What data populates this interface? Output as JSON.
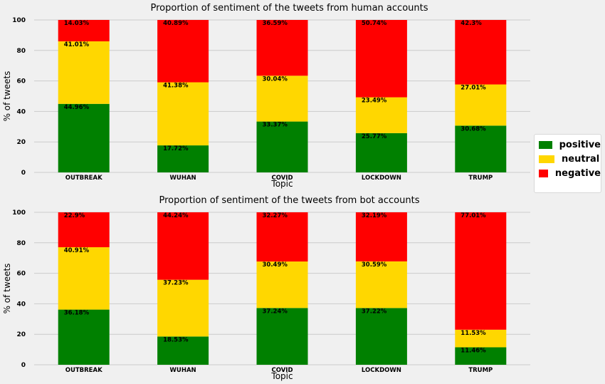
{
  "legend": {
    "entries": [
      {
        "label": "positive",
        "color": "#008000"
      },
      {
        "label": "neutral",
        "color": "#ffd700"
      },
      {
        "label": "negative",
        "color": "#ff0000"
      }
    ]
  },
  "chart_data": [
    {
      "type": "bar",
      "stacked": true,
      "title": "Proportion of sentiment of the tweets from human accounts",
      "xlabel": "Topic",
      "ylabel": "% of tweets",
      "ylim": [
        0,
        100
      ],
      "yticks": [
        "0",
        "20",
        "40",
        "60",
        "80",
        "100"
      ],
      "grid": true,
      "legend_position": "top-right, outside plot",
      "categories": [
        "OUTBREAK",
        "WUHAN",
        "COVID",
        "LOCKDOWN",
        "TRUMP"
      ],
      "series": [
        {
          "name": "positive",
          "color": "#008000",
          "values": [
            44.96,
            17.72,
            33.37,
            25.77,
            30.68
          ],
          "labels": [
            "44.96%",
            "17.72%",
            "33.37%",
            "25.77%",
            "30.68%"
          ]
        },
        {
          "name": "neutral",
          "color": "#ffd700",
          "values": [
            41.01,
            41.38,
            30.04,
            23.49,
            27.01
          ],
          "labels": [
            "41.01%",
            "41.38%",
            "30.04%",
            "23.49%",
            "27.01%"
          ]
        },
        {
          "name": "negative",
          "color": "#ff0000",
          "values": [
            14.03,
            40.89,
            36.59,
            50.74,
            42.3
          ],
          "labels": [
            "14.03%",
            "40.89%",
            "36.59%",
            "50.74%",
            "42.3%"
          ]
        }
      ]
    },
    {
      "type": "bar",
      "stacked": true,
      "title": "Proportion of sentiment of the tweets from bot accounts",
      "xlabel": "Topic",
      "ylabel": "% of tweets",
      "ylim": [
        0,
        100
      ],
      "yticks": [
        "0",
        "20",
        "40",
        "60",
        "80",
        "100"
      ],
      "grid": true,
      "categories": [
        "OUTBREAK",
        "WUHAN",
        "COVID",
        "LOCKDOWN",
        "TRUMP"
      ],
      "series": [
        {
          "name": "positive",
          "color": "#008000",
          "values": [
            36.18,
            18.53,
            37.24,
            37.22,
            11.46
          ],
          "labels": [
            "36.18%",
            "18.53%",
            "37.24%",
            "37.22%",
            "11.46%"
          ]
        },
        {
          "name": "neutral",
          "color": "#ffd700",
          "values": [
            40.91,
            37.23,
            30.49,
            30.59,
            11.53
          ],
          "labels": [
            "40.91%",
            "37.23%",
            "30.49%",
            "30.59%",
            "11.53%"
          ]
        },
        {
          "name": "negative",
          "color": "#ff0000",
          "values": [
            22.9,
            44.24,
            32.27,
            32.19,
            77.01
          ],
          "labels": [
            "22.9%",
            "44.24%",
            "32.27%",
            "32.19%",
            "77.01%"
          ]
        }
      ]
    }
  ]
}
